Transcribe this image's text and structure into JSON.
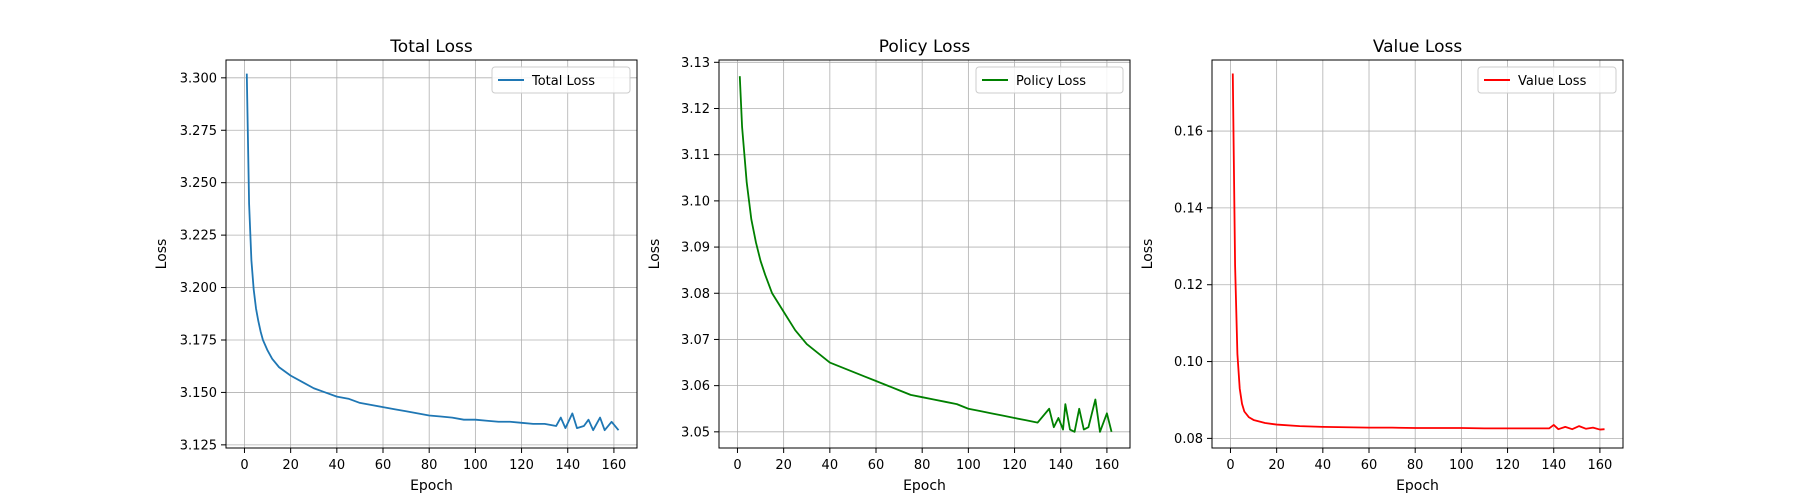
{
  "chart_data": [
    {
      "type": "line",
      "title": "Total Loss",
      "xlabel": "Epoch",
      "ylabel": "Loss",
      "xlim": [
        -8,
        170
      ],
      "ylim": [
        3.1235,
        3.3085
      ],
      "xticks": [
        0,
        20,
        40,
        60,
        80,
        100,
        120,
        140,
        160
      ],
      "yticks": [
        3.125,
        3.15,
        3.175,
        3.2,
        3.225,
        3.25,
        3.275,
        3.3
      ],
      "ytick_labels": [
        "3.125",
        "3.150",
        "3.175",
        "3.200",
        "3.225",
        "3.250",
        "3.275",
        "3.300"
      ],
      "grid": true,
      "legend_position": "top-right",
      "series": [
        {
          "name": "Total Loss",
          "color": "#1f77b4",
          "points": [
            [
              1,
              3.302
            ],
            [
              2,
              3.24
            ],
            [
              3,
              3.213
            ],
            [
              4,
              3.199
            ],
            [
              5,
              3.19
            ],
            [
              6,
              3.184
            ],
            [
              7,
              3.179
            ],
            [
              8,
              3.175
            ],
            [
              10,
              3.17
            ],
            [
              12,
              3.166
            ],
            [
              15,
              3.162
            ],
            [
              20,
              3.158
            ],
            [
              25,
              3.155
            ],
            [
              30,
              3.152
            ],
            [
              35,
              3.15
            ],
            [
              40,
              3.148
            ],
            [
              45,
              3.147
            ],
            [
              50,
              3.145
            ],
            [
              55,
              3.144
            ],
            [
              60,
              3.143
            ],
            [
              65,
              3.142
            ],
            [
              70,
              3.141
            ],
            [
              75,
              3.14
            ],
            [
              80,
              3.139
            ],
            [
              85,
              3.1385
            ],
            [
              90,
              3.138
            ],
            [
              95,
              3.137
            ],
            [
              100,
              3.137
            ],
            [
              105,
              3.1365
            ],
            [
              110,
              3.136
            ],
            [
              115,
              3.136
            ],
            [
              120,
              3.1355
            ],
            [
              125,
              3.135
            ],
            [
              130,
              3.135
            ],
            [
              135,
              3.134
            ],
            [
              137,
              3.138
            ],
            [
              139,
              3.133
            ],
            [
              142,
              3.14
            ],
            [
              144,
              3.133
            ],
            [
              147,
              3.134
            ],
            [
              149,
              3.137
            ],
            [
              151,
              3.132
            ],
            [
              154,
              3.138
            ],
            [
              156,
              3.132
            ],
            [
              159,
              3.136
            ],
            [
              162,
              3.132
            ]
          ]
        }
      ]
    },
    {
      "type": "line",
      "title": "Policy Loss",
      "xlabel": "Epoch",
      "ylabel": "Loss",
      "xlim": [
        -8,
        170
      ],
      "ylim": [
        3.0465,
        3.1305
      ],
      "xticks": [
        0,
        20,
        40,
        60,
        80,
        100,
        120,
        140,
        160
      ],
      "yticks": [
        3.05,
        3.06,
        3.07,
        3.08,
        3.09,
        3.1,
        3.11,
        3.12,
        3.13
      ],
      "ytick_labels": [
        "3.05",
        "3.06",
        "3.07",
        "3.08",
        "3.09",
        "3.10",
        "3.11",
        "3.12",
        "3.13"
      ],
      "grid": true,
      "legend_position": "top-right",
      "series": [
        {
          "name": "Policy Loss",
          "color": "#008000",
          "points": [
            [
              1,
              3.127
            ],
            [
              2,
              3.116
            ],
            [
              3,
              3.11
            ],
            [
              4,
              3.104
            ],
            [
              5,
              3.1
            ],
            [
              6,
              3.096
            ],
            [
              8,
              3.091
            ],
            [
              10,
              3.087
            ],
            [
              12,
              3.084
            ],
            [
              15,
              3.08
            ],
            [
              20,
              3.076
            ],
            [
              25,
              3.072
            ],
            [
              30,
              3.069
            ],
            [
              35,
              3.067
            ],
            [
              40,
              3.065
            ],
            [
              45,
              3.064
            ],
            [
              50,
              3.063
            ],
            [
              55,
              3.062
            ],
            [
              60,
              3.061
            ],
            [
              65,
              3.06
            ],
            [
              70,
              3.059
            ],
            [
              75,
              3.058
            ],
            [
              80,
              3.0575
            ],
            [
              85,
              3.057
            ],
            [
              90,
              3.0565
            ],
            [
              95,
              3.056
            ],
            [
              100,
              3.055
            ],
            [
              105,
              3.0545
            ],
            [
              110,
              3.054
            ],
            [
              115,
              3.0535
            ],
            [
              120,
              3.053
            ],
            [
              125,
              3.0525
            ],
            [
              130,
              3.052
            ],
            [
              135,
              3.055
            ],
            [
              137,
              3.051
            ],
            [
              139,
              3.053
            ],
            [
              141,
              3.0505
            ],
            [
              142,
              3.056
            ],
            [
              144,
              3.0505
            ],
            [
              146,
              3.05
            ],
            [
              148,
              3.055
            ],
            [
              150,
              3.0505
            ],
            [
              152,
              3.051
            ],
            [
              155,
              3.057
            ],
            [
              157,
              3.05
            ],
            [
              160,
              3.054
            ],
            [
              162,
              3.05
            ]
          ]
        }
      ]
    },
    {
      "type": "line",
      "title": "Value Loss",
      "xlabel": "Epoch",
      "ylabel": "Loss",
      "xlim": [
        -8,
        170
      ],
      "ylim": [
        0.0775,
        0.1785
      ],
      "xticks": [
        0,
        20,
        40,
        60,
        80,
        100,
        120,
        140,
        160
      ],
      "yticks": [
        0.08,
        0.1,
        0.12,
        0.14,
        0.16
      ],
      "ytick_labels": [
        "0.08",
        "0.10",
        "0.12",
        "0.14",
        "0.16"
      ],
      "grid": true,
      "legend_position": "top-right",
      "series": [
        {
          "name": "Value Loss",
          "color": "#ff0000",
          "points": [
            [
              1,
              0.175
            ],
            [
              2,
              0.125
            ],
            [
              3,
              0.102
            ],
            [
              4,
              0.093
            ],
            [
              5,
              0.089
            ],
            [
              6,
              0.087
            ],
            [
              8,
              0.0855
            ],
            [
              10,
              0.0848
            ],
            [
              15,
              0.084
            ],
            [
              20,
              0.0836
            ],
            [
              30,
              0.0832
            ],
            [
              40,
              0.083
            ],
            [
              50,
              0.0829
            ],
            [
              60,
              0.0828
            ],
            [
              70,
              0.0828
            ],
            [
              80,
              0.0827
            ],
            [
              90,
              0.0827
            ],
            [
              100,
              0.0827
            ],
            [
              110,
              0.0826
            ],
            [
              120,
              0.0826
            ],
            [
              130,
              0.0826
            ],
            [
              138,
              0.0826
            ],
            [
              140,
              0.0835
            ],
            [
              142,
              0.0824
            ],
            [
              145,
              0.083
            ],
            [
              148,
              0.0824
            ],
            [
              151,
              0.0832
            ],
            [
              154,
              0.0825
            ],
            [
              157,
              0.0828
            ],
            [
              160,
              0.0823
            ],
            [
              162,
              0.0824
            ]
          ]
        }
      ]
    }
  ]
}
